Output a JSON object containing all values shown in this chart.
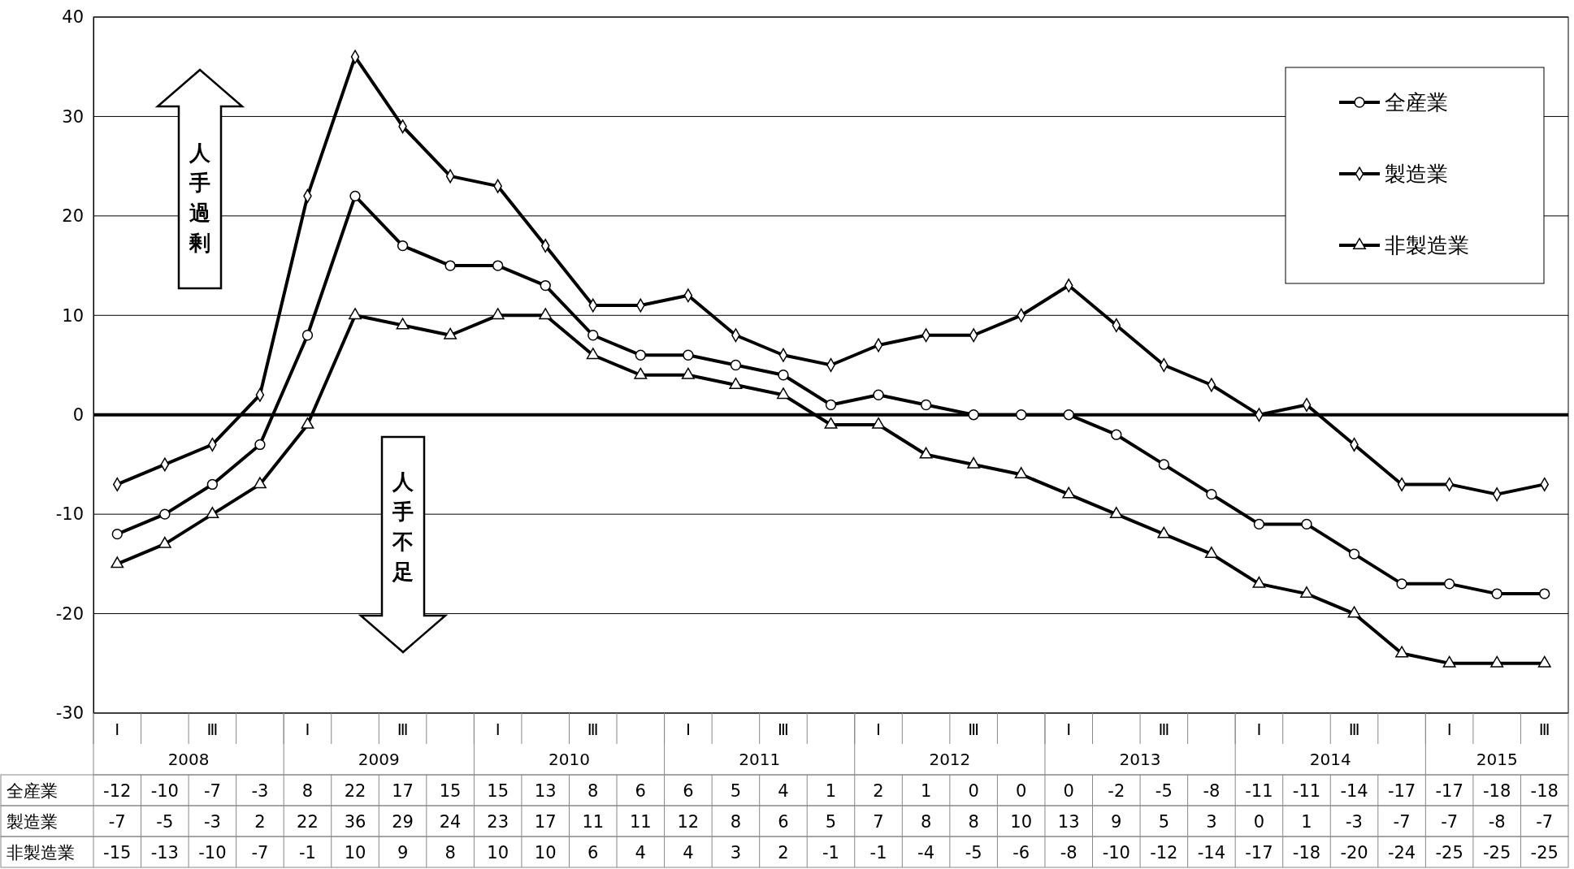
{
  "chart_data": {
    "type": "line",
    "categories": [
      "Ⅰ",
      null,
      "Ⅲ",
      null,
      "Ⅰ",
      null,
      "Ⅲ",
      null,
      "Ⅰ",
      null,
      "Ⅲ",
      null,
      "Ⅰ",
      null,
      "Ⅲ",
      null,
      "Ⅰ",
      null,
      "Ⅲ",
      null,
      "Ⅰ",
      null,
      "Ⅲ",
      null,
      "Ⅰ",
      null,
      "Ⅲ",
      null,
      "Ⅰ",
      null,
      "Ⅲ"
    ],
    "series": [
      {
        "name": "全産業",
        "color": "#000000",
        "marker": "circle",
        "values": [
          -12,
          -10,
          -7,
          -3,
          8,
          22,
          17,
          15,
          15,
          13,
          8,
          6,
          6,
          5,
          4,
          1,
          2,
          1,
          0,
          0,
          0,
          -2,
          -5,
          -8,
          -11,
          -11,
          -14,
          -17,
          -17,
          -18,
          -18
        ]
      },
      {
        "name": "製造業",
        "color": "#000000",
        "marker": "diamond",
        "values": [
          -7,
          -5,
          -3,
          2,
          22,
          36,
          29,
          24,
          23,
          17,
          11,
          11,
          12,
          8,
          6,
          5,
          7,
          8,
          8,
          10,
          13,
          9,
          5,
          3,
          0,
          1,
          -3,
          -7,
          -7,
          -8,
          -7
        ]
      },
      {
        "name": "非製造業",
        "color": "#000000",
        "marker": "triangle",
        "values": [
          -15,
          -13,
          -10,
          -7,
          -1,
          10,
          9,
          8,
          10,
          10,
          6,
          4,
          4,
          3,
          2,
          -1,
          -1,
          -4,
          -5,
          -6,
          -8,
          -10,
          -12,
          -14,
          -17,
          -18,
          -20,
          -24,
          -25,
          -25,
          -25
        ]
      }
    ],
    "ylim": [
      -30,
      40
    ],
    "yticks": [
      -30,
      -20,
      -10,
      0,
      10,
      20,
      30,
      40
    ],
    "grid": "y",
    "legend": "top right",
    "line_style": "solid",
    "data_labels": true,
    "ref_lines": [
      {
        "axis": "y",
        "value": 0,
        "color": "#000000"
      }
    ],
    "annotations": [
      "人手過剰",
      "人手不足",
      "2008",
      "2009",
      "2010",
      "2011",
      "2012",
      "2013",
      "2014",
      "2015"
    ]
  }
}
